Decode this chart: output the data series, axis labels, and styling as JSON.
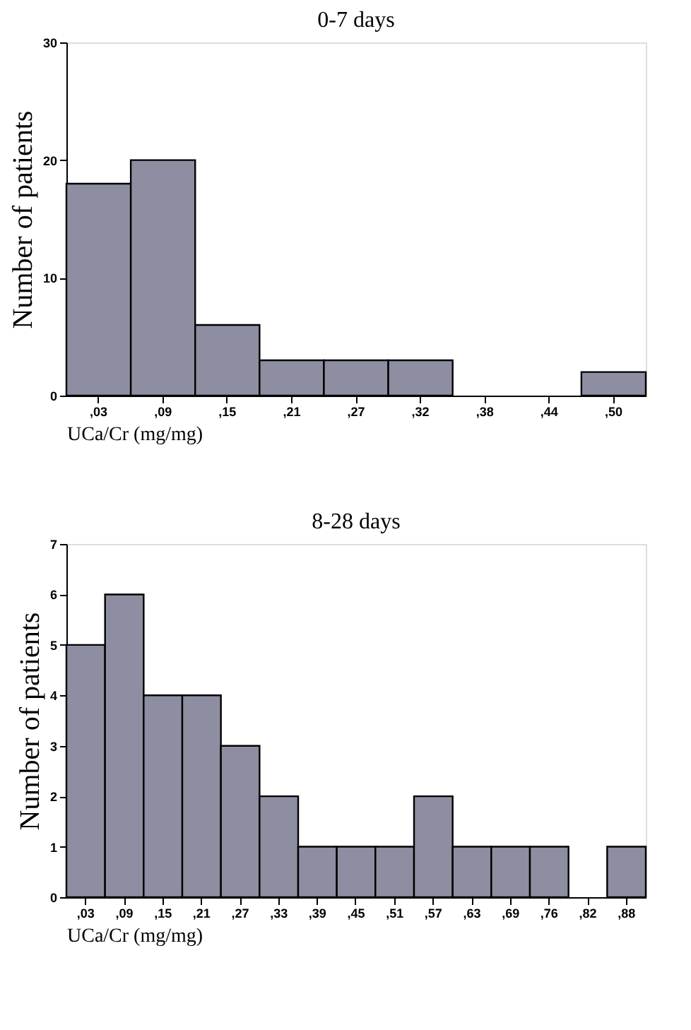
{
  "chart_data": [
    {
      "type": "bar",
      "title": "0-7 days",
      "xlabel": "UCa/Cr (mg/mg)",
      "ylabel": "Number of patients",
      "color": "#8e8ea2",
      "grid": false,
      "categories": [
        ",03",
        ",09",
        ",15",
        ",21",
        ",27",
        ",32",
        ",38",
        ",44",
        ",50"
      ],
      "values": [
        18,
        20,
        6,
        3,
        3,
        3,
        0,
        0,
        2
      ],
      "ylim": [
        0,
        30
      ],
      "yticks": [
        0,
        10,
        20,
        30
      ]
    },
    {
      "type": "bar",
      "title": "8-28 days",
      "xlabel": "UCa/Cr (mg/mg)",
      "ylabel": "Number of patients",
      "color": "#8e8ea2",
      "grid": false,
      "categories": [
        ",03",
        ",09",
        ",15",
        ",21",
        ",27",
        ",33",
        ",39",
        ",45",
        ",51",
        ",57",
        ",63",
        ",69",
        ",76",
        ",82",
        ",88"
      ],
      "values": [
        5,
        6,
        4,
        4,
        3,
        2,
        1,
        1,
        1,
        2,
        1,
        1,
        1,
        0,
        1
      ],
      "ylim": [
        0,
        7
      ],
      "yticks": [
        0,
        1,
        2,
        3,
        4,
        5,
        6,
        7
      ]
    }
  ]
}
